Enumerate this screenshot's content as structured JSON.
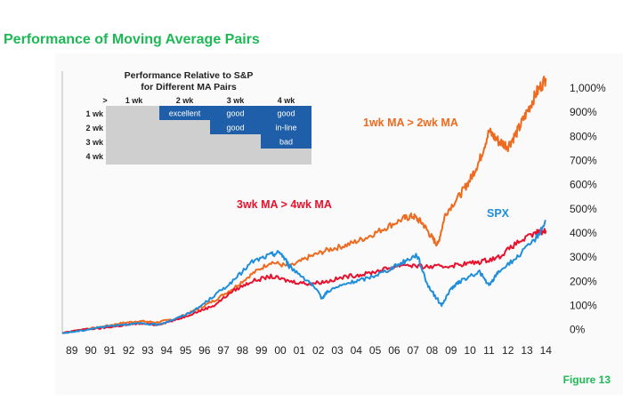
{
  "header": {
    "title": "Performance of Moving Average Pairs"
  },
  "footer": {
    "figure_label": "Figure 13"
  },
  "colors": {
    "orange": "#ee6a1e",
    "red": "#e8112d",
    "blue": "#1f8fdc",
    "matrix_blue": "#1f5ea8",
    "matrix_gray": "#cfcfcf",
    "green": "#1db954"
  },
  "chart_data": {
    "type": "line",
    "x_tick_labels": [
      "89",
      "90",
      "91",
      "92",
      "93",
      "94",
      "95",
      "96",
      "97",
      "98",
      "99",
      "00",
      "01",
      "02",
      "03",
      "04",
      "05",
      "06",
      "07",
      "08",
      "09",
      "10",
      "11",
      "12",
      "13",
      "14"
    ],
    "y_tick_labels": [
      "0%",
      "100%",
      "200%",
      "300%",
      "400%",
      "500%",
      "600%",
      "700%",
      "800%",
      "900%",
      "1,000%"
    ],
    "ylim": [
      -20,
      1070
    ],
    "xlim": [
      1989.0,
      2015.0
    ],
    "series": [
      {
        "name": "1wk MA > 2wk MA",
        "label": "1wk MA > 2wk MA",
        "color": "#ee6a1e",
        "points": [
          [
            1989.0,
            -15
          ],
          [
            1990.0,
            0
          ],
          [
            1991.0,
            10
          ],
          [
            1992.0,
            25
          ],
          [
            1993.0,
            35
          ],
          [
            1994.0,
            30
          ],
          [
            1995.0,
            45
          ],
          [
            1996.0,
            80
          ],
          [
            1997.0,
            120
          ],
          [
            1998.0,
            170
          ],
          [
            1999.0,
            230
          ],
          [
            2000.0,
            280
          ],
          [
            2001.0,
            260
          ],
          [
            2002.0,
            300
          ],
          [
            2003.0,
            330
          ],
          [
            2004.0,
            350
          ],
          [
            2005.0,
            380
          ],
          [
            2006.0,
            420
          ],
          [
            2007.0,
            460
          ],
          [
            2007.5,
            470
          ],
          [
            2008.0,
            440
          ],
          [
            2008.5,
            380
          ],
          [
            2008.8,
            350
          ],
          [
            2009.2,
            480
          ],
          [
            2010.0,
            560
          ],
          [
            2010.5,
            620
          ],
          [
            2011.0,
            700
          ],
          [
            2011.5,
            820
          ],
          [
            2012.0,
            780
          ],
          [
            2012.5,
            760
          ],
          [
            2013.0,
            820
          ],
          [
            2013.5,
            900
          ],
          [
            2014.0,
            980
          ],
          [
            2014.5,
            1040
          ]
        ]
      },
      {
        "name": "3wk MA > 4wk MA",
        "label": "3wk MA > 4wk MA",
        "color": "#e8112d",
        "points": [
          [
            1989.0,
            -15
          ],
          [
            1990.0,
            0
          ],
          [
            1991.0,
            5
          ],
          [
            1992.0,
            15
          ],
          [
            1993.0,
            25
          ],
          [
            1994.0,
            20
          ],
          [
            1995.0,
            40
          ],
          [
            1996.0,
            70
          ],
          [
            1997.0,
            100
          ],
          [
            1998.0,
            160
          ],
          [
            1999.0,
            200
          ],
          [
            2000.0,
            220
          ],
          [
            2001.0,
            200
          ],
          [
            2002.0,
            190
          ],
          [
            2003.0,
            200
          ],
          [
            2004.0,
            220
          ],
          [
            2005.0,
            230
          ],
          [
            2006.0,
            250
          ],
          [
            2007.0,
            270
          ],
          [
            2008.0,
            260
          ],
          [
            2009.0,
            260
          ],
          [
            2010.0,
            270
          ],
          [
            2011.0,
            280
          ],
          [
            2012.0,
            300
          ],
          [
            2013.0,
            360
          ],
          [
            2014.0,
            400
          ],
          [
            2014.5,
            410
          ]
        ]
      },
      {
        "name": "SPX",
        "label": "SPX",
        "color": "#1f8fdc",
        "points": [
          [
            1989.0,
            -15
          ],
          [
            1990.0,
            -5
          ],
          [
            1991.0,
            10
          ],
          [
            1992.0,
            20
          ],
          [
            1993.0,
            25
          ],
          [
            1994.0,
            20
          ],
          [
            1995.0,
            45
          ],
          [
            1996.0,
            80
          ],
          [
            1997.0,
            140
          ],
          [
            1998.0,
            200
          ],
          [
            1999.0,
            280
          ],
          [
            2000.0,
            310
          ],
          [
            2000.5,
            320
          ],
          [
            2001.0,
            260
          ],
          [
            2002.0,
            200
          ],
          [
            2002.7,
            130
          ],
          [
            2003.0,
            160
          ],
          [
            2004.0,
            190
          ],
          [
            2005.0,
            210
          ],
          [
            2006.0,
            240
          ],
          [
            2007.0,
            280
          ],
          [
            2007.7,
            310
          ],
          [
            2008.3,
            180
          ],
          [
            2009.0,
            100
          ],
          [
            2009.5,
            170
          ],
          [
            2010.0,
            200
          ],
          [
            2011.0,
            240
          ],
          [
            2011.5,
            180
          ],
          [
            2012.0,
            240
          ],
          [
            2013.0,
            300
          ],
          [
            2014.0,
            380
          ],
          [
            2014.5,
            450
          ]
        ]
      }
    ],
    "matrix": {
      "title_line1": "Performance Relative to S&P",
      "title_line2": "for Different MA Pairs",
      "corner": ">",
      "col_headers": [
        "1 wk",
        "2 wk",
        "3 wk",
        "4 wk"
      ],
      "row_headers": [
        "1 wk",
        "2 wk",
        "3 wk",
        "4 wk"
      ],
      "cells": [
        [
          "",
          "excellent",
          "good",
          "good"
        ],
        [
          "",
          "",
          "good",
          "in-line"
        ],
        [
          "",
          "",
          "",
          "bad"
        ],
        [
          "",
          "",
          "",
          ""
        ]
      ]
    }
  }
}
